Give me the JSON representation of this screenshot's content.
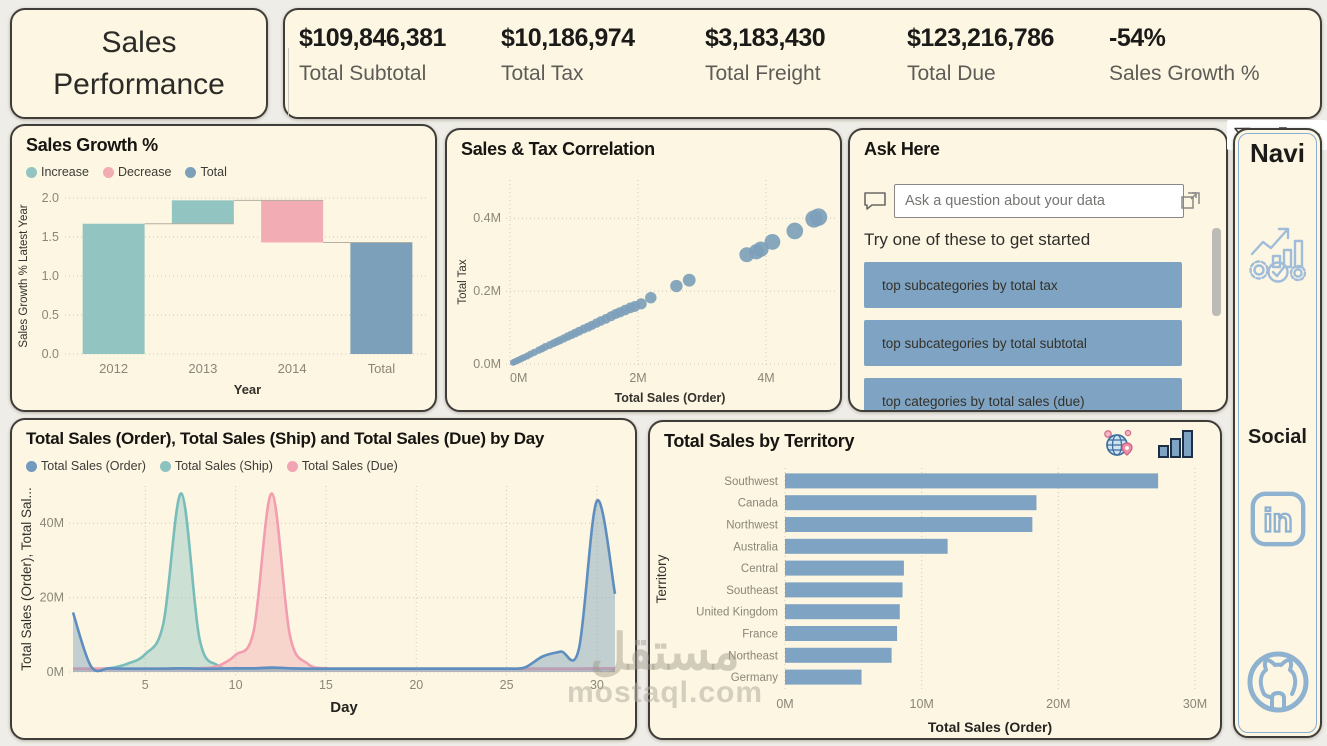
{
  "theme": {
    "page_bg": "#EFEDE7",
    "panel_bg": "#FCF6E2",
    "panel_border": "#3E3D3A",
    "increase": "#92C5C2",
    "decrease": "#F2ACB4",
    "total": "#7DA0BA",
    "accent_blue": "#7FA3C2",
    "icon_blue": "#8FB2D1",
    "axis_gray": "#8A8779",
    "axis_dark": "#33312C",
    "grid": "#CFC9B6"
  },
  "header": {
    "title": "Sales Performance",
    "kpis": [
      {
        "value": "$109,846,381",
        "label": "Total Subtotal"
      },
      {
        "value": "$10,186,974",
        "label": "Total Tax"
      },
      {
        "value": "$3,183,430",
        "label": "Total Freight"
      },
      {
        "value": "$123,216,786",
        "label": "Total Due"
      },
      {
        "value": "-54%",
        "label": "Sales Growth %"
      }
    ]
  },
  "visual_header": {
    "icons": [
      "filter-icon",
      "focus-mode-icon",
      "more-options-icon"
    ]
  },
  "qa": {
    "title": "Ask Here",
    "input_placeholder": "Ask a question about your data",
    "helper_text": "Try one of these to get started",
    "suggestions": [
      "top subcategories by total tax",
      "top subcategories by total subtotal",
      "top categories by total sales (due)"
    ]
  },
  "nav": {
    "title": "Navi",
    "social_label": "Social",
    "icons": [
      "analytics-icon",
      "linkedin-icon",
      "github-icon"
    ]
  },
  "watermark": {
    "line1": "مستقل",
    "line2": "mostaql.com"
  },
  "chart_data": [
    {
      "type": "bar",
      "subtype": "waterfall",
      "title": "Sales Growth %",
      "xlabel": "Year",
      "ylabel": "Sales Growth % Latest Year",
      "ylim": [
        0,
        2
      ],
      "yticks": [
        0.0,
        0.5,
        1.0,
        1.5,
        2.0
      ],
      "grid": true,
      "legend": [
        {
          "label": "Increase",
          "color": "#92C5C2"
        },
        {
          "label": "Decrease",
          "color": "#F2ACB4"
        },
        {
          "label": "Total",
          "color": "#7DA0BA"
        }
      ],
      "categories": [
        "2012",
        "2013",
        "2014",
        "Total"
      ],
      "bars": [
        {
          "category": "2012",
          "start": 0,
          "end": 1.67,
          "kind": "increase"
        },
        {
          "category": "2013",
          "start": 1.67,
          "end": 1.97,
          "kind": "increase"
        },
        {
          "category": "2014",
          "start": 1.97,
          "end": 1.43,
          "kind": "decrease"
        },
        {
          "category": "Total",
          "start": 0,
          "end": 1.43,
          "kind": "total"
        }
      ]
    },
    {
      "type": "scatter",
      "title": "Sales & Tax Correlation",
      "xlabel": "Total Sales (Order)",
      "ylabel": "Total Tax",
      "units": "millions",
      "xlim": [
        0,
        5
      ],
      "ylim": [
        0,
        0.45
      ],
      "grid": true,
      "xticks": [
        {
          "v": 0,
          "label": "0M"
        },
        {
          "v": 2,
          "label": "2M"
        },
        {
          "v": 4,
          "label": "4M"
        }
      ],
      "yticks": [
        {
          "v": 0,
          "label": "0.0M"
        },
        {
          "v": 0.2,
          "label": "0.2M"
        },
        {
          "v": 0.4,
          "label": "0.4M"
        }
      ],
      "point_color": "#7DA0BA",
      "points": [
        [
          0.05,
          0.004
        ],
        [
          0.07,
          0.006
        ],
        [
          0.1,
          0.008
        ],
        [
          0.12,
          0.01
        ],
        [
          0.15,
          0.012
        ],
        [
          0.18,
          0.015
        ],
        [
          0.22,
          0.018
        ],
        [
          0.27,
          0.022
        ],
        [
          0.32,
          0.027
        ],
        [
          0.38,
          0.032
        ],
        [
          0.45,
          0.038
        ],
        [
          0.5,
          0.042
        ],
        [
          0.55,
          0.047
        ],
        [
          0.62,
          0.052
        ],
        [
          0.68,
          0.057
        ],
        [
          0.73,
          0.061
        ],
        [
          0.78,
          0.065
        ],
        [
          0.84,
          0.07
        ],
        [
          0.9,
          0.075
        ],
        [
          0.96,
          0.08
        ],
        [
          1.02,
          0.085
        ],
        [
          1.08,
          0.09
        ],
        [
          1.15,
          0.096
        ],
        [
          1.22,
          0.101
        ],
        [
          1.28,
          0.106
        ],
        [
          1.35,
          0.112
        ],
        [
          1.42,
          0.118
        ],
        [
          1.5,
          0.124
        ],
        [
          1.58,
          0.131
        ],
        [
          1.65,
          0.137
        ],
        [
          1.72,
          0.142
        ],
        [
          1.8,
          0.148
        ],
        [
          1.88,
          0.154
        ],
        [
          1.95,
          0.158
        ],
        [
          2.05,
          0.165
        ],
        [
          2.2,
          0.182
        ],
        [
          2.6,
          0.214
        ],
        [
          2.8,
          0.23
        ],
        [
          3.7,
          0.3
        ],
        [
          3.85,
          0.308
        ],
        [
          3.92,
          0.315
        ],
        [
          4.1,
          0.335
        ],
        [
          4.45,
          0.365
        ],
        [
          4.75,
          0.398
        ],
        [
          4.82,
          0.403
        ]
      ]
    },
    {
      "type": "area",
      "title": "Total Sales (Order), Total Sales (Ship) and Total Sales (Due) by Day",
      "xlabel": "Day",
      "ylabel": "Total Sales (Order), Total Sal...",
      "units": "millions",
      "x_start": 1,
      "x_end": 31,
      "ylim": [
        0,
        50
      ],
      "grid": true,
      "xticks": [
        5,
        10,
        15,
        20,
        25,
        30
      ],
      "yticks": [
        {
          "v": 0,
          "label": "0M"
        },
        {
          "v": 20,
          "label": "20M"
        },
        {
          "v": 40,
          "label": "40M"
        }
      ],
      "series": [
        {
          "name": "Total Sales (Ship)",
          "line": "#79BDBB",
          "fill": "#92C5C2",
          "dot": "#8CC2BF",
          "values": [
            0.9,
            0.9,
            1,
            2.2,
            4.8,
            13,
            48,
            9,
            1.8,
            1,
            0.9,
            1,
            1,
            0.9,
            0.9,
            0.9,
            0.9,
            0.9,
            0.9,
            0.9,
            0.9,
            0.9,
            0.9,
            0.9,
            0.9,
            0.9,
            0.9,
            0.9,
            0.9,
            0.9,
            0.9
          ]
        },
        {
          "name": "Total Sales (Due)",
          "line": "#F29DB0",
          "fill": "#F2ACB4",
          "dot": "#F2A4B4",
          "values": [
            0.9,
            0.9,
            0.9,
            0.9,
            0.9,
            0.9,
            0.9,
            1,
            1.6,
            4.6,
            11,
            48,
            10,
            2.2,
            1,
            0.9,
            0.9,
            0.9,
            0.9,
            0.9,
            0.9,
            0.9,
            0.9,
            0.9,
            0.9,
            0.9,
            0.9,
            0.9,
            0.9,
            1,
            1
          ]
        },
        {
          "name": "Total Sales (Order)",
          "line": "#5E8EBF",
          "fill": "#7DA0BA",
          "dot": "#7299BE",
          "values": [
            16,
            1.5,
            1,
            0.9,
            0.9,
            0.9,
            1,
            0.9,
            0.9,
            1,
            1,
            1.2,
            1,
            0.9,
            0.9,
            0.9,
            0.9,
            0.9,
            0.9,
            0.9,
            0.9,
            0.9,
            0.9,
            0.9,
            0.9,
            1.2,
            4.2,
            5.5,
            6.2,
            46,
            21
          ]
        }
      ],
      "legend_order": [
        "Total Sales (Order)",
        "Total Sales (Ship)",
        "Total Sales (Due)"
      ]
    },
    {
      "type": "bar",
      "orientation": "horizontal",
      "title": "Total Sales by Territory",
      "xlabel": "Total Sales (Order)",
      "ylabel": "Territory",
      "units": "millions",
      "xlim": [
        0,
        30
      ],
      "grid": true,
      "xticks": [
        {
          "v": 0,
          "label": "0M"
        },
        {
          "v": 10,
          "label": "10M"
        },
        {
          "v": 20,
          "label": "20M"
        },
        {
          "v": 30,
          "label": "30M"
        }
      ],
      "bar_color": "#7FA3C2",
      "categories": [
        "Southwest",
        "Canada",
        "Northwest",
        "Australia",
        "Central",
        "Southeast",
        "United Kingdom",
        "France",
        "Northeast",
        "Germany"
      ],
      "values": [
        27.3,
        18.4,
        18.1,
        11.9,
        8.7,
        8.6,
        8.4,
        8.2,
        7.8,
        5.6
      ]
    }
  ]
}
